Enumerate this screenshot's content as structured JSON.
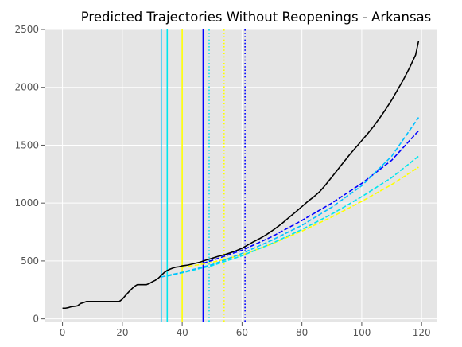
{
  "chart_data": {
    "type": "line",
    "title": "Predicted Trajectories Without Reopenings - Arkansas",
    "xlabel": "",
    "ylabel": "",
    "xlim": [
      -6,
      125
    ],
    "ylim": [
      -30,
      2500
    ],
    "x_ticks": [
      0,
      20,
      40,
      60,
      80,
      100,
      120
    ],
    "y_ticks": [
      0,
      500,
      1000,
      1500,
      2000,
      2500
    ],
    "grid": true,
    "background": "#e5e5e5",
    "series": [
      {
        "color": "#000000",
        "style": "solid",
        "points": [
          [
            0,
            92
          ],
          [
            1,
            92
          ],
          [
            2,
            97
          ],
          [
            3,
            105
          ],
          [
            4,
            108
          ],
          [
            5,
            112
          ],
          [
            6,
            132
          ],
          [
            7,
            140
          ],
          [
            8,
            150
          ],
          [
            10,
            150
          ],
          [
            12,
            150
          ],
          [
            14,
            150
          ],
          [
            16,
            150
          ],
          [
            18,
            150
          ],
          [
            19,
            150
          ],
          [
            20,
            170
          ],
          [
            21,
            200
          ],
          [
            22,
            228
          ],
          [
            23,
            255
          ],
          [
            24,
            280
          ],
          [
            25,
            295
          ],
          [
            26,
            295
          ],
          [
            27,
            295
          ],
          [
            28,
            295
          ],
          [
            29,
            305
          ],
          [
            30,
            320
          ],
          [
            31,
            333
          ],
          [
            32,
            350
          ],
          [
            33,
            375
          ],
          [
            34,
            400
          ],
          [
            35,
            418
          ],
          [
            36,
            430
          ],
          [
            37,
            440
          ],
          [
            38,
            447
          ],
          [
            39,
            450
          ],
          [
            40,
            458
          ],
          [
            42,
            465
          ],
          [
            44,
            478
          ],
          [
            46,
            490
          ],
          [
            48,
            508
          ],
          [
            50,
            523
          ],
          [
            52,
            540
          ],
          [
            54,
            553
          ],
          [
            56,
            570
          ],
          [
            58,
            588
          ],
          [
            60,
            610
          ],
          [
            62,
            640
          ],
          [
            64,
            668
          ],
          [
            66,
            695
          ],
          [
            68,
            725
          ],
          [
            70,
            760
          ],
          [
            72,
            797
          ],
          [
            74,
            838
          ],
          [
            76,
            883
          ],
          [
            78,
            925
          ],
          [
            80,
            970
          ],
          [
            82,
            1015
          ],
          [
            84,
            1055
          ],
          [
            86,
            1100
          ],
          [
            88,
            1160
          ],
          [
            90,
            1225
          ],
          [
            92,
            1290
          ],
          [
            94,
            1355
          ],
          [
            96,
            1420
          ],
          [
            98,
            1480
          ],
          [
            100,
            1540
          ],
          [
            102,
            1600
          ],
          [
            104,
            1665
          ],
          [
            106,
            1735
          ],
          [
            108,
            1810
          ],
          [
            110,
            1890
          ],
          [
            112,
            1980
          ],
          [
            114,
            2070
          ],
          [
            116,
            2170
          ],
          [
            118,
            2280
          ],
          [
            119,
            2400
          ]
        ]
      },
      {
        "color": "#00bfff",
        "style": "dashed",
        "points": [
          [
            33,
            362
          ],
          [
            40,
            402
          ],
          [
            50,
            468
          ],
          [
            60,
            565
          ],
          [
            70,
            680
          ],
          [
            80,
            808
          ],
          [
            90,
            965
          ],
          [
            100,
            1150
          ],
          [
            110,
            1405
          ],
          [
            119,
            1740
          ]
        ]
      },
      {
        "color": "#0000ff",
        "style": "dashed",
        "points": [
          [
            47,
            480
          ],
          [
            50,
            505
          ],
          [
            60,
            593
          ],
          [
            70,
            710
          ],
          [
            80,
            850
          ],
          [
            90,
            1000
          ],
          [
            100,
            1170
          ],
          [
            110,
            1370
          ],
          [
            119,
            1625
          ]
        ]
      },
      {
        "color": "#00e5ee",
        "style": "dashed",
        "points": [
          [
            35,
            370
          ],
          [
            40,
            398
          ],
          [
            50,
            460
          ],
          [
            60,
            545
          ],
          [
            70,
            652
          ],
          [
            80,
            772
          ],
          [
            90,
            905
          ],
          [
            100,
            1055
          ],
          [
            110,
            1220
          ],
          [
            119,
            1405
          ]
        ]
      },
      {
        "color": "#ffff00",
        "style": "dashed",
        "points": [
          [
            40,
            445
          ],
          [
            45,
            465
          ],
          [
            50,
            488
          ],
          [
            60,
            552
          ],
          [
            70,
            648
          ],
          [
            80,
            758
          ],
          [
            90,
            880
          ],
          [
            100,
            1015
          ],
          [
            110,
            1160
          ],
          [
            119,
            1310
          ]
        ]
      }
    ],
    "vertical_lines": [
      {
        "x": 33,
        "color": "#00bfff",
        "style": "solid"
      },
      {
        "x": 35,
        "color": "#00e5ee",
        "style": "solid"
      },
      {
        "x": 40,
        "color": "#ffff00",
        "style": "solid"
      },
      {
        "x": 47,
        "color": "#0000ff",
        "style": "solid"
      },
      {
        "x": 49,
        "color": "#00e5ee",
        "style": "dotted"
      },
      {
        "x": 54,
        "color": "#ffff00",
        "style": "dotted"
      },
      {
        "x": 61,
        "color": "#0000ff",
        "style": "dotted"
      }
    ]
  }
}
